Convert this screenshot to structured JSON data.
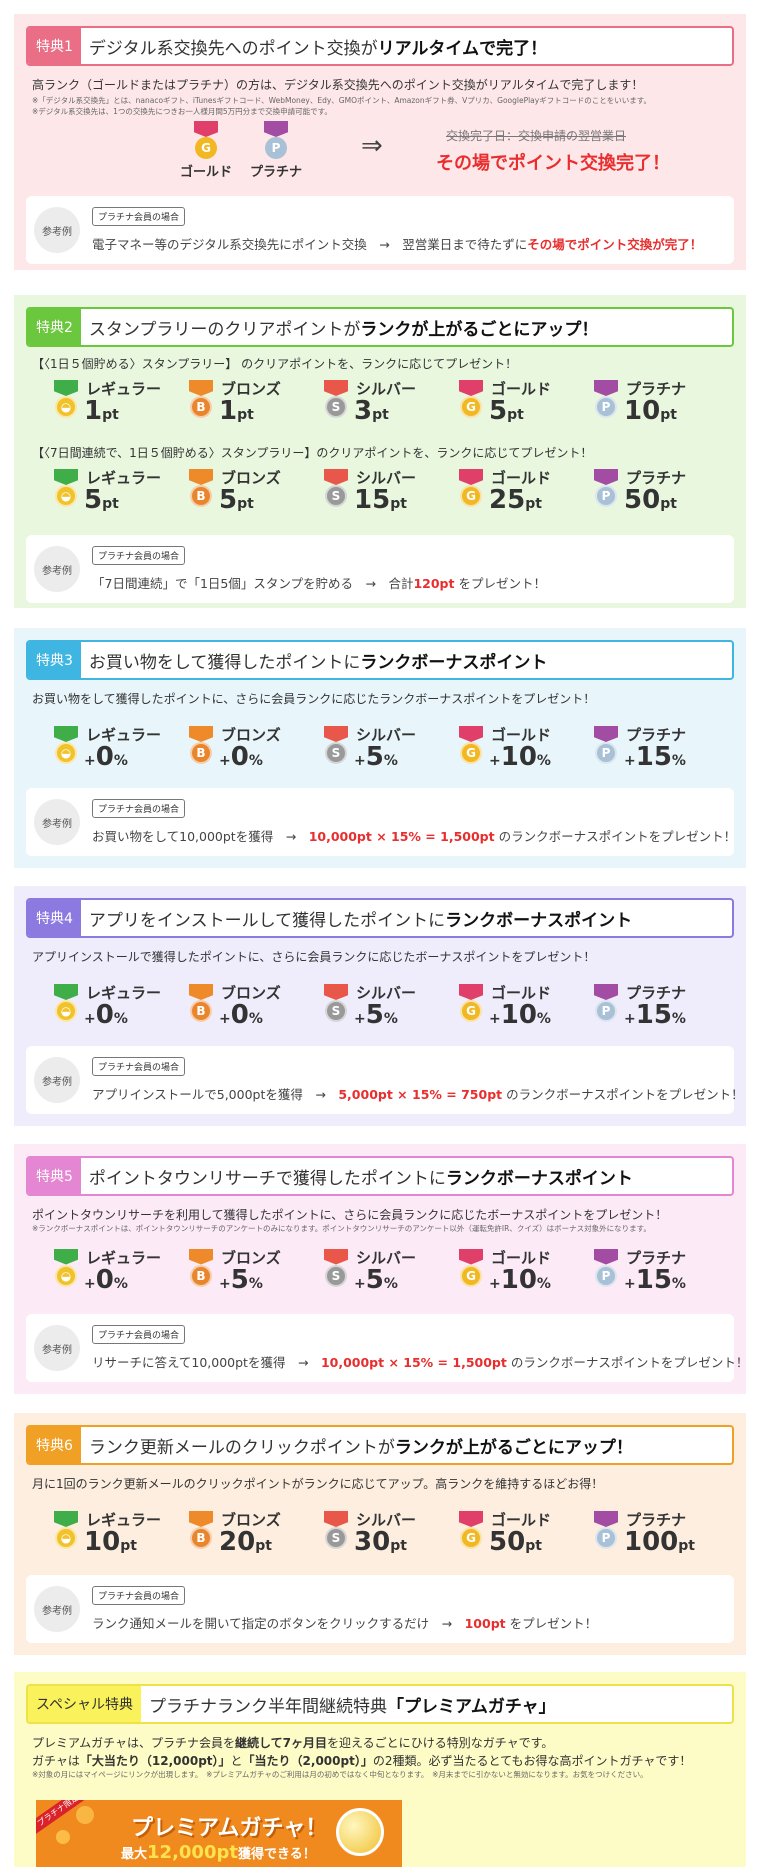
{
  "s1": {
    "badge": "特典1",
    "title_a": "デジタル系交換先へのポイント交換が",
    "title_b": "リアルタイムで完了！",
    "desc": "高ランク（ゴールドまたはプラチナ）の方は、デジタル系交換先へのポイント交換がリアルタイムで完了します！",
    "note1": "※「デジタル系交換先」とは、nanacoギフト、iTunesギフトコード、WebMoney、Edy、GMOポイント、Amazonギフト券、Vプリカ、GooglePlayギフトコードのことをいいます。",
    "note2": "※デジタル系交換先は、1つの交換先につきお一人様月間5万円分まで交換申請可能です。",
    "medal_gold": "ゴールド",
    "medal_plat": "プラチナ",
    "arrow": "⇒",
    "strike": "交換完了日：交換申請の翌営業日",
    "done": "その場でポイント交換完了！",
    "ex_label": "参考例",
    "ex_tag": "プラチナ会員の場合",
    "ex_a": "電子マネー等のデジタル系交換先にポイント交換　→　翌営業日まで待たずに",
    "ex_b": "その場でポイント交換が完了！"
  },
  "ranks": [
    "レギュラー",
    "ブロンズ",
    "シルバー",
    "ゴールド",
    "プラチナ"
  ],
  "s2": {
    "badge": "特典2",
    "title_a": "スタンプラリーのクリアポイントが",
    "title_b": "ランクが上がるごとにアップ！",
    "sub1": "【〈1日５個貯める〉スタンプラリー】 のクリアポイントを、ランクに応じてプレゼント！",
    "v1": [
      "1",
      "1",
      "3",
      "5",
      "10"
    ],
    "sub2": "【〈7日間連続で、1日５個貯める〉スタンプラリー】のクリアポイントを、ランクに応じてプレゼント！",
    "v2": [
      "5",
      "5",
      "15",
      "25",
      "50"
    ],
    "unit": "pt",
    "ex_label": "参考例",
    "ex_tag": "プラチナ会員の場合",
    "ex_a": "「7日間連続」で「1日5個」スタンプを貯める　→　合計",
    "ex_b": "120pt",
    "ex_c": " をプレゼント！"
  },
  "s3": {
    "badge": "特典3",
    "title_a": "お買い物をして獲得したポイントに",
    "title_b": "ランクボーナスポイント",
    "desc": "お買い物をして獲得したポイントに、さらに会員ランクに応じたランクボーナスポイントをプレゼント！",
    "v": [
      "0",
      "0",
      "5",
      "10",
      "15"
    ],
    "ex_label": "参考例",
    "ex_tag": "プラチナ会員の場合",
    "ex_a": "お買い物をして10,000ptを獲得　→　",
    "ex_b": "10,000pt × 15% = 1,500pt",
    "ex_c": " のランクボーナスポイントをプレゼント！"
  },
  "s4": {
    "badge": "特典4",
    "title_a": "アプリをインストールして獲得したポイントに",
    "title_b": "ランクボーナスポイント",
    "desc": "アプリインストールで獲得したポイントに、さらに会員ランクに応じたボーナスポイントをプレゼント！",
    "v": [
      "0",
      "0",
      "5",
      "10",
      "15"
    ],
    "ex_label": "参考例",
    "ex_tag": "プラチナ会員の場合",
    "ex_a": "アプリインストールで5,000ptを獲得　→　",
    "ex_b": "5,000pt × 15% = 750pt",
    "ex_c": " のランクボーナスポイントをプレゼント！"
  },
  "s5": {
    "badge": "特典5",
    "title_a": "ポイントタウンリサーチで獲得したポイントに",
    "title_b": "ランクボーナスポイント",
    "desc": "ポイントタウンリサーチを利用して獲得したポイントに、さらに会員ランクに応じたボーナスポイントをプレゼント！",
    "note": "※ランクボーナスポイントは、ポイントタウンリサーチのアンケートのみになります。ポイントタウンリサーチのアンケート以外（運転免許IR、クイズ）はボーナス対象外になります。",
    "v": [
      "0",
      "5",
      "5",
      "10",
      "15"
    ],
    "ex_label": "参考例",
    "ex_tag": "プラチナ会員の場合",
    "ex_a": "リサーチに答えて10,000ptを獲得　→　",
    "ex_b": "10,000pt × 15% = 1,500pt",
    "ex_c": " のランクボーナスポイントをプレゼント！"
  },
  "s6": {
    "badge": "特典6",
    "title_a": "ランク更新メールのクリックポイントが",
    "title_b": "ランクが上がるごとにアップ！",
    "desc": "月に1回のランク更新メールのクリックポイントがランクに応じてアップ。高ランクを維持するほどお得！",
    "v": [
      "10",
      "20",
      "30",
      "50",
      "100"
    ],
    "unit": "pt",
    "ex_label": "参考例",
    "ex_tag": "プラチナ会員の場合",
    "ex_a": "ランク通知メールを開いて指定のボタンをクリックするだけ　→　",
    "ex_b": "100pt",
    "ex_c": " をプレゼント！"
  },
  "s7": {
    "badge": "スペシャル特典",
    "title_a": "プラチナランク半年間継続特典",
    "title_b": "「プレミアムガチャ」",
    "d1a": "プレミアムガチャは、プラチナ会員を",
    "d1b": "継続して7ヶ月目",
    "d1c": "を迎えるごとにひける特別なガチャです。",
    "d2a": "ガチャは",
    "d2b": "「大当たり（12,000pt）」",
    "d2c": "と",
    "d2d": "「当たり（2,000pt）」",
    "d2e": "の2種類。必ず当たるとてもお得な高ポイントガチャです！",
    "note": "※対象の月にはマイページにリンクが出現します。　※プレミアムガチャのご利用は月の初めではなく中旬となります。　※月末までに引かないと無効になります。お気をつけください。",
    "ban_corner": "プラチナ限定",
    "ban_title": "プレミアムガチャ！",
    "ban_a": "最大",
    "ban_b": "12,000pt",
    "ban_c": "獲得できる！"
  },
  "colors": {
    "regular": "#3fae49",
    "bronze": "#ee8a2a",
    "silver": "#e8574a",
    "gold": "#e03f6a",
    "platinum": "#a24ca3",
    "coin_regular": "#f2c22a",
    "coin_bronze": "#e9862d",
    "coin_silver": "#999",
    "coin_gold": "#f1b823",
    "coin_platinum": "#a9c1d6"
  }
}
